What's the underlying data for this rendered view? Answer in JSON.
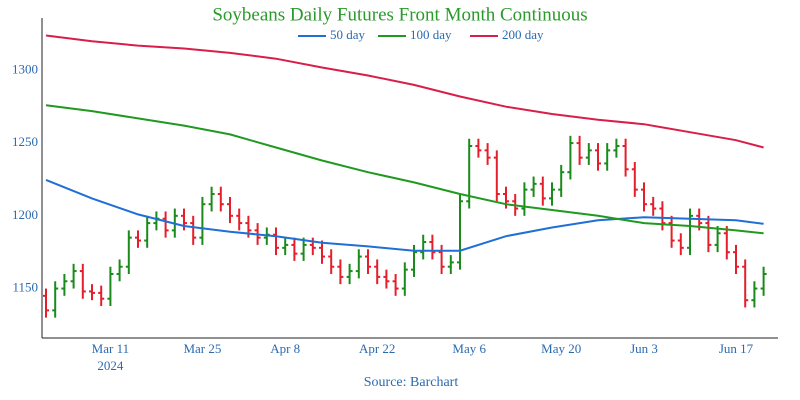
{
  "chart_data": {
    "type": "ohlc",
    "title": "Soybeans Daily Futures Front Month Continuous",
    "source": "Source: Barchart",
    "x": [
      "2024-02-29",
      "2024-03-01",
      "2024-03-04",
      "2024-03-05",
      "2024-03-06",
      "2024-03-07",
      "2024-03-08",
      "2024-03-11",
      "2024-03-12",
      "2024-03-13",
      "2024-03-14",
      "2024-03-15",
      "2024-03-18",
      "2024-03-19",
      "2024-03-20",
      "2024-03-21",
      "2024-03-22",
      "2024-03-25",
      "2024-03-26",
      "2024-03-27",
      "2024-03-28",
      "2024-04-01",
      "2024-04-02",
      "2024-04-03",
      "2024-04-04",
      "2024-04-05",
      "2024-04-08",
      "2024-04-09",
      "2024-04-10",
      "2024-04-11",
      "2024-04-12",
      "2024-04-15",
      "2024-04-16",
      "2024-04-17",
      "2024-04-18",
      "2024-04-19",
      "2024-04-22",
      "2024-04-23",
      "2024-04-24",
      "2024-04-25",
      "2024-04-26",
      "2024-04-29",
      "2024-04-30",
      "2024-05-01",
      "2024-05-02",
      "2024-05-03",
      "2024-05-06",
      "2024-05-07",
      "2024-05-08",
      "2024-05-09",
      "2024-05-10",
      "2024-05-13",
      "2024-05-14",
      "2024-05-15",
      "2024-05-16",
      "2024-05-17",
      "2024-05-20",
      "2024-05-21",
      "2024-05-22",
      "2024-05-23",
      "2024-05-24",
      "2024-05-28",
      "2024-05-29",
      "2024-05-30",
      "2024-05-31",
      "2024-06-03",
      "2024-06-04",
      "2024-06-05",
      "2024-06-06",
      "2024-06-07",
      "2024-06-10",
      "2024-06-11",
      "2024-06-12",
      "2024-06-13",
      "2024-06-14",
      "2024-06-17",
      "2024-06-18",
      "2024-06-20",
      "2024-06-21"
    ],
    "open": [
      1145,
      1135,
      1150,
      1155,
      1162,
      1148,
      1147,
      1143,
      1160,
      1165,
      1185,
      1183,
      1195,
      1198,
      1190,
      1200,
      1195,
      1185,
      1208,
      1215,
      1208,
      1200,
      1195,
      1190,
      1185,
      1187,
      1178,
      1180,
      1174,
      1180,
      1178,
      1172,
      1165,
      1158,
      1162,
      1172,
      1165,
      1158,
      1155,
      1150,
      1163,
      1175,
      1182,
      1175,
      1165,
      1168,
      1210,
      1248,
      1245,
      1240,
      1215,
      1210,
      1205,
      1218,
      1222,
      1212,
      1218,
      1230,
      1250,
      1240,
      1245,
      1236,
      1245,
      1248,
      1232,
      1218,
      1208,
      1205,
      1195,
      1183,
      1178,
      1200,
      1195,
      1180,
      1188,
      1175,
      1165,
      1142,
      1150
    ],
    "high": [
      1150,
      1155,
      1160,
      1167,
      1167,
      1153,
      1152,
      1165,
      1170,
      1190,
      1190,
      1200,
      1203,
      1203,
      1205,
      1205,
      1200,
      1213,
      1220,
      1220,
      1213,
      1205,
      1200,
      1195,
      1192,
      1192,
      1185,
      1185,
      1185,
      1185,
      1183,
      1177,
      1170,
      1167,
      1177,
      1177,
      1170,
      1163,
      1160,
      1168,
      1180,
      1187,
      1187,
      1180,
      1173,
      1215,
      1253,
      1253,
      1250,
      1245,
      1220,
      1215,
      1223,
      1227,
      1227,
      1223,
      1235,
      1255,
      1255,
      1250,
      1250,
      1250,
      1253,
      1253,
      1237,
      1223,
      1213,
      1210,
      1200,
      1188,
      1205,
      1205,
      1200,
      1193,
      1193,
      1180,
      1170,
      1155,
      1165
    ],
    "low": [
      1130,
      1130,
      1145,
      1150,
      1143,
      1142,
      1138,
      1138,
      1155,
      1160,
      1178,
      1178,
      1190,
      1185,
      1185,
      1190,
      1180,
      1180,
      1203,
      1203,
      1195,
      1190,
      1185,
      1180,
      1180,
      1173,
      1173,
      1169,
      1169,
      1173,
      1167,
      1160,
      1153,
      1153,
      1157,
      1160,
      1153,
      1150,
      1145,
      1145,
      1158,
      1170,
      1170,
      1160,
      1160,
      1163,
      1205,
      1240,
      1235,
      1210,
      1205,
      1200,
      1200,
      1213,
      1207,
      1207,
      1213,
      1225,
      1235,
      1235,
      1231,
      1231,
      1240,
      1227,
      1213,
      1203,
      1200,
      1190,
      1178,
      1173,
      1173,
      1190,
      1175,
      1175,
      1170,
      1160,
      1137,
      1137,
      1145
    ],
    "close": [
      1135,
      1150,
      1155,
      1162,
      1148,
      1147,
      1143,
      1160,
      1165,
      1185,
      1183,
      1195,
      1198,
      1190,
      1200,
      1195,
      1185,
      1208,
      1215,
      1208,
      1200,
      1195,
      1190,
      1185,
      1187,
      1178,
      1180,
      1174,
      1180,
      1178,
      1172,
      1165,
      1158,
      1162,
      1172,
      1165,
      1158,
      1155,
      1150,
      1163,
      1175,
      1182,
      1175,
      1165,
      1168,
      1210,
      1248,
      1245,
      1240,
      1215,
      1210,
      1205,
      1218,
      1222,
      1212,
      1218,
      1230,
      1250,
      1240,
      1245,
      1236,
      1245,
      1248,
      1232,
      1218,
      1208,
      1205,
      1195,
      1183,
      1178,
      1200,
      1195,
      1180,
      1188,
      1175,
      1165,
      1142,
      1150,
      1160
    ],
    "up_color": "#1a8a1a",
    "down_color": "#e41e2b",
    "series": [
      {
        "name": "50 day",
        "color": "#1f6fd6",
        "x": [
          "2024-02-29",
          "2024-03-07",
          "2024-03-14",
          "2024-03-21",
          "2024-03-28",
          "2024-04-05",
          "2024-04-12",
          "2024-04-19",
          "2024-04-26",
          "2024-05-03",
          "2024-05-10",
          "2024-05-17",
          "2024-05-24",
          "2024-06-03",
          "2024-06-10",
          "2024-06-17",
          "2024-06-21"
        ],
        "values": [
          1224.7,
          1212,
          1201,
          1193,
          1189,
          1186,
          1181.5,
          1179,
          1176,
          1176,
          1186,
          1192,
          1197,
          1199,
          1198,
          1197,
          1194.5
        ]
      },
      {
        "name": "100 day",
        "color": "#1f9a1f",
        "x": [
          "2024-02-29",
          "2024-03-07",
          "2024-03-14",
          "2024-03-21",
          "2024-03-28",
          "2024-04-05",
          "2024-04-12",
          "2024-04-19",
          "2024-04-26",
          "2024-05-03",
          "2024-05-10",
          "2024-05-17",
          "2024-05-24",
          "2024-06-03",
          "2024-06-10",
          "2024-06-17",
          "2024-06-21"
        ],
        "values": [
          1276,
          1272,
          1267,
          1262,
          1256,
          1247,
          1238,
          1230,
          1223,
          1215,
          1208,
          1204,
          1200,
          1195,
          1193,
          1190,
          1188
        ]
      },
      {
        "name": "200 day",
        "color": "#d81e4a",
        "x": [
          "2024-02-29",
          "2024-03-07",
          "2024-03-14",
          "2024-03-21",
          "2024-03-28",
          "2024-04-05",
          "2024-04-12",
          "2024-04-19",
          "2024-04-26",
          "2024-05-03",
          "2024-05-10",
          "2024-05-17",
          "2024-05-24",
          "2024-06-03",
          "2024-06-10",
          "2024-06-17",
          "2024-06-21"
        ],
        "values": [
          1324,
          1320,
          1317,
          1315,
          1312,
          1308,
          1302,
          1296.5,
          1290,
          1282,
          1275,
          1270,
          1266,
          1263,
          1257.5,
          1252,
          1247
        ]
      }
    ],
    "ylim": [
      1116,
      1336
    ],
    "yticks": [
      1150,
      1200,
      1250,
      1300
    ],
    "xticks": [
      {
        "value": "2024-03-11",
        "label": "Mar 11"
      },
      {
        "value": "2024-03-25",
        "label": "Mar 25"
      },
      {
        "value": "2024-04-08",
        "label": "Apr 8"
      },
      {
        "value": "2024-04-22",
        "label": "Apr 22"
      },
      {
        "value": "2024-05-06",
        "label": "May 6"
      },
      {
        "value": "2024-05-20",
        "label": "May 20"
      },
      {
        "value": "2024-06-03",
        "label": "Jun 3"
      },
      {
        "value": "2024-06-17",
        "label": "Jun 17"
      }
    ],
    "x_year": "2024"
  }
}
